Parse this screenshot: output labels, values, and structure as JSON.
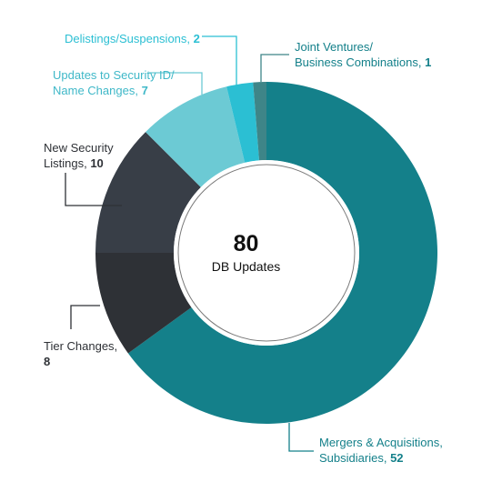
{
  "chart_data": {
    "type": "pie",
    "variant": "donut",
    "total": 80,
    "center_label": "DB Updates",
    "slices": [
      {
        "name": "Mergers & Acquisitions, Subsidiaries",
        "label_lines": [
          "Mergers & Acquisitions,",
          "Subsidiaries,"
        ],
        "value": 52,
        "color": "#14808a"
      },
      {
        "name": "Tier Changes",
        "label_lines": [
          "Tier Changes,"
        ],
        "value": 8,
        "color": "#2e3136"
      },
      {
        "name": "New Security Listings",
        "label_lines": [
          "New Security",
          "Listings,"
        ],
        "value": 10,
        "color": "#383e47"
      },
      {
        "name": "Updates to Security ID/ Name Changes",
        "label_lines": [
          "Updates to Security ID/",
          "Name Changes,"
        ],
        "value": 7,
        "color": "#6ccad4"
      },
      {
        "name": "Delistings/Suspensions",
        "label_lines": [
          "Delistings/Suspensions,"
        ],
        "value": 2,
        "color": "#2bbfd3"
      },
      {
        "name": "Joint Ventures/ Business Combinations",
        "label_lines": [
          "Joint Ventures/",
          "Business Combinations,"
        ],
        "value": 1,
        "color": "#3e8588"
      }
    ]
  }
}
